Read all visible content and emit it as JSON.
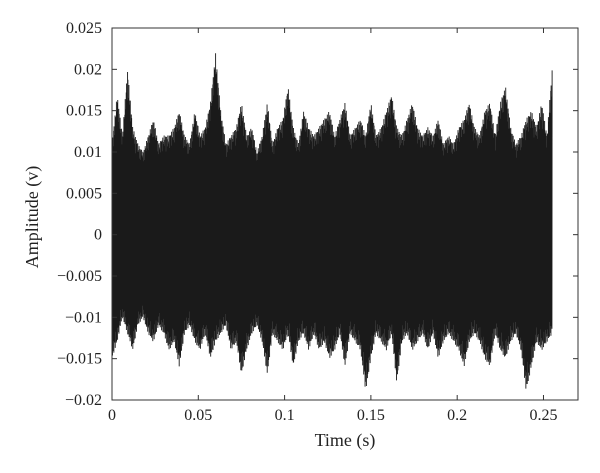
{
  "chart_data": {
    "type": "line",
    "title": "",
    "xlabel": "Time (s)",
    "ylabel": "Amplitude (v)",
    "xlim": [
      0,
      0.27
    ],
    "ylim": [
      -0.02,
      0.025
    ],
    "xticks": [
      0,
      0.05,
      0.1,
      0.15,
      0.2,
      0.25
    ],
    "xtick_labels": [
      "0",
      "0.05",
      "0.1",
      "0.15",
      "0.2",
      "0.25"
    ],
    "yticks": [
      -0.02,
      -0.015,
      -0.01,
      -0.005,
      0,
      0.005,
      0.01,
      0.015,
      0.02,
      0.025
    ],
    "ytick_labels": [
      "−0.02",
      "−0.015",
      "−0.01",
      "−0.005",
      "0",
      "0.005",
      "0.01",
      "0.015",
      "0.02",
      "0.025"
    ],
    "grid": false,
    "legend": "none",
    "line_color": "#1a1a1a",
    "series": [
      {
        "x": [
          0,
          0.003,
          0.006,
          0.009,
          0.012,
          0.015,
          0.018,
          0.021,
          0.024,
          0.027,
          0.03,
          0.033,
          0.036,
          0.039,
          0.042,
          0.045,
          0.048,
          0.051,
          0.054,
          0.057,
          0.06,
          0.063,
          0.066,
          0.069,
          0.072,
          0.075,
          0.078,
          0.081,
          0.084,
          0.087,
          0.09,
          0.093,
          0.096,
          0.099,
          0.102,
          0.105,
          0.108,
          0.111,
          0.114,
          0.117,
          0.12,
          0.123,
          0.126,
          0.129,
          0.132,
          0.135,
          0.138,
          0.141,
          0.144,
          0.147,
          0.15,
          0.153,
          0.156,
          0.159,
          0.162,
          0.165,
          0.168,
          0.171,
          0.174,
          0.177,
          0.18,
          0.183,
          0.186,
          0.189,
          0.192,
          0.195,
          0.198,
          0.201,
          0.204,
          0.207,
          0.21,
          0.213,
          0.216,
          0.219,
          0.222,
          0.225,
          0.228,
          0.231,
          0.234,
          0.237,
          0.24,
          0.243,
          0.246,
          0.249,
          0.252,
          0.255
        ],
        "upper": [
          0.011,
          0.017,
          0.012,
          0.02,
          0.013,
          0.011,
          0.01,
          0.012,
          0.014,
          0.011,
          0.012,
          0.012,
          0.013,
          0.015,
          0.012,
          0.011,
          0.015,
          0.012,
          0.013,
          0.016,
          0.022,
          0.015,
          0.011,
          0.012,
          0.013,
          0.016,
          0.012,
          0.013,
          0.01,
          0.012,
          0.016,
          0.011,
          0.013,
          0.014,
          0.018,
          0.013,
          0.011,
          0.015,
          0.013,
          0.012,
          0.013,
          0.014,
          0.015,
          0.012,
          0.014,
          0.016,
          0.012,
          0.013,
          0.014,
          0.012,
          0.016,
          0.012,
          0.013,
          0.015,
          0.017,
          0.013,
          0.012,
          0.014,
          0.016,
          0.013,
          0.012,
          0.013,
          0.012,
          0.014,
          0.011,
          0.012,
          0.011,
          0.013,
          0.014,
          0.016,
          0.013,
          0.012,
          0.015,
          0.016,
          0.012,
          0.016,
          0.018,
          0.013,
          0.011,
          0.012,
          0.014,
          0.015,
          0.013,
          0.016,
          0.012,
          0.02
        ],
        "lower": [
          -0.015,
          -0.013,
          -0.01,
          -0.012,
          -0.014,
          -0.011,
          -0.01,
          -0.012,
          -0.013,
          -0.011,
          -0.012,
          -0.014,
          -0.013,
          -0.016,
          -0.012,
          -0.011,
          -0.013,
          -0.014,
          -0.012,
          -0.015,
          -0.013,
          -0.012,
          -0.011,
          -0.014,
          -0.013,
          -0.017,
          -0.014,
          -0.012,
          -0.011,
          -0.013,
          -0.017,
          -0.012,
          -0.013,
          -0.014,
          -0.012,
          -0.016,
          -0.013,
          -0.012,
          -0.014,
          -0.012,
          -0.014,
          -0.013,
          -0.015,
          -0.014,
          -0.012,
          -0.016,
          -0.012,
          -0.013,
          -0.014,
          -0.019,
          -0.015,
          -0.012,
          -0.013,
          -0.014,
          -0.012,
          -0.018,
          -0.013,
          -0.012,
          -0.014,
          -0.013,
          -0.012,
          -0.014,
          -0.012,
          -0.015,
          -0.013,
          -0.012,
          -0.013,
          -0.014,
          -0.016,
          -0.013,
          -0.012,
          -0.013,
          -0.015,
          -0.016,
          -0.012,
          -0.014,
          -0.015,
          -0.013,
          -0.012,
          -0.014,
          -0.019,
          -0.016,
          -0.013,
          -0.014,
          -0.013,
          -0.012
        ]
      }
    ]
  }
}
